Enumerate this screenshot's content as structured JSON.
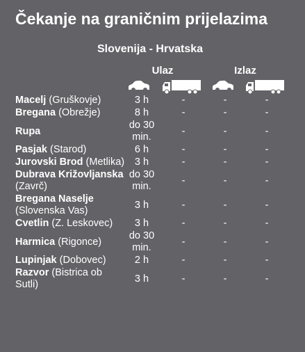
{
  "title": "Čekanje na graničnim prijelazima",
  "subtitle": "Slovenija - Hrvatska",
  "groups": [
    "Ulaz",
    "Izlaz"
  ],
  "rows": [
    {
      "name": "Macelj",
      "place": "(Gruškovje)",
      "cells": [
        "3 h",
        "-",
        "-",
        "-"
      ]
    },
    {
      "name": "Bregana",
      "place": "(Obrežje)",
      "cells": [
        "8 h",
        "-",
        "-",
        "-"
      ]
    },
    {
      "name": "Rupa",
      "place": null,
      "cells": [
        "do 30 min.",
        "-",
        "-",
        "-"
      ]
    },
    {
      "name": "Pasjak",
      "place": "(Starod)",
      "cells": [
        "6 h",
        "-",
        "-",
        "-"
      ]
    },
    {
      "name": "Jurovski Brod",
      "place": "(Metlika)",
      "cells": [
        "3 h",
        "-",
        "-",
        "-"
      ]
    },
    {
      "name": "Dubrava Križovljanska",
      "place": "(Zavrč)",
      "cells": [
        "do 30 min.",
        "-",
        "-",
        "-"
      ]
    },
    {
      "name": "Bregana Naselje",
      "place": "(Slovenska Vas)",
      "cells": [
        "3 h",
        "-",
        "-",
        "-"
      ]
    },
    {
      "name": "Cvetlin",
      "place": "(Z. Leskovec)",
      "cells": [
        "3 h",
        "-",
        "-",
        "-"
      ]
    },
    {
      "name": "Harmica",
      "place": "(Rigonce)",
      "cells": [
        "do 30 min.",
        "-",
        "-",
        "-"
      ]
    },
    {
      "name": "Lupinjak",
      "place": "(Dobovec)",
      "cells": [
        "2 h",
        "-",
        "-",
        "-"
      ]
    },
    {
      "name": "Razvor",
      "place": "(Bistrica ob Sutli)",
      "cells": [
        "3 h",
        "-",
        "-",
        "-"
      ]
    }
  ]
}
